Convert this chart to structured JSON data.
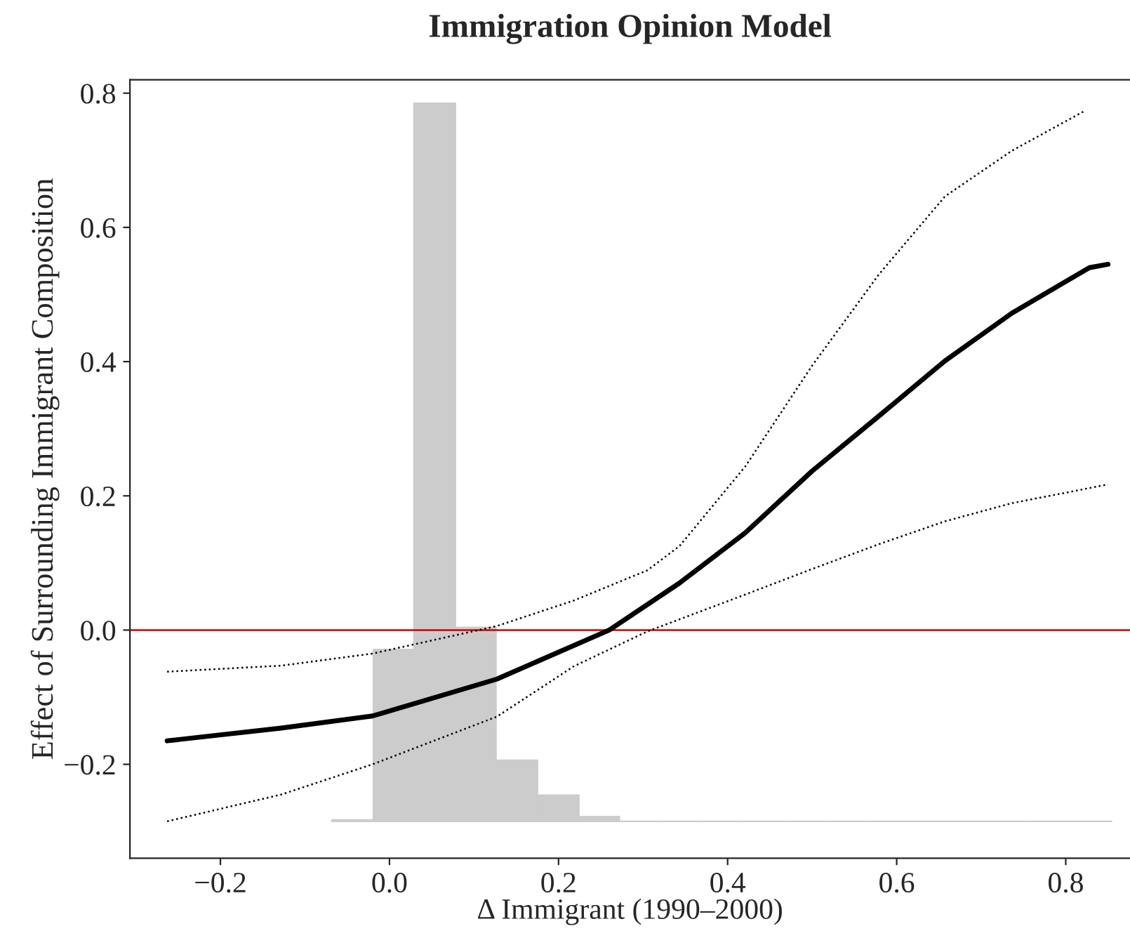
{
  "chart_data": {
    "type": "line",
    "title": "Immigration Opinion Model",
    "xlabel": "Δ Immigrant (1990–2000)",
    "ylabel": "Effect of Surrounding Immigrant Composition",
    "xlim": [
      -0.307,
      0.876
    ],
    "ylim": [
      -0.34,
      0.82
    ],
    "xticks": [
      {
        "value": -0.2,
        "label": "−0.2"
      },
      {
        "value": 0,
        "label": "0.0"
      },
      0.2,
      0.4,
      0.6,
      0.8
    ],
    "yticks": [
      {
        "value": -0.2,
        "label": "−0.2"
      },
      {
        "value": 0,
        "label": "0.0"
      },
      0.2,
      0.4,
      0.6,
      0.8
    ],
    "grid": false,
    "legend": false,
    "ref_lines": [
      {
        "axis": "y",
        "value": 0,
        "color": "#cc0000",
        "line_style": "solid"
      }
    ],
    "series": [
      {
        "type": "histogram",
        "color": "#cccccc",
        "bins": [
          -0.068,
          -0.019,
          0.029,
          0.078,
          0.126,
          0.175,
          0.224,
          0.272,
          0.321,
          0.369,
          0.418,
          0.467,
          0.515,
          0.564,
          0.612,
          0.661,
          0.71,
          0.758,
          0.807,
          0.855
        ],
        "values": [
          0.002,
          0.256,
          1.07,
          0.289,
          0.091,
          0.039,
          0.007,
          0,
          0,
          0,
          0,
          0,
          0,
          0,
          0,
          0,
          0,
          0,
          0
        ],
        "base": [
          -0.285,
          -0.285,
          -0.285,
          -0.285,
          -0.285,
          -0.285,
          -0.285,
          -0.285,
          -0.285,
          -0.285,
          -0.285,
          -0.285,
          -0.285,
          -0.285,
          -0.285,
          -0.285,
          -0.285,
          -0.285,
          -0.285
        ]
      },
      {
        "color": "#000000",
        "line_style": "dotted",
        "x": [
          -0.263,
          -0.128,
          -0.02,
          0.127,
          0.218,
          0.305,
          0.343,
          0.421,
          0.5,
          0.579,
          0.657,
          0.736,
          0.823
        ],
        "values": [
          -0.062,
          -0.053,
          -0.035,
          0.006,
          0.044,
          0.089,
          0.125,
          0.244,
          0.394,
          0.53,
          0.646,
          0.714,
          0.774
        ]
      },
      {
        "color": "#000000",
        "line_style": "solid",
        "x": [
          -0.263,
          -0.128,
          -0.02,
          0.127,
          0.26,
          0.343,
          0.421,
          0.5,
          0.579,
          0.657,
          0.736,
          0.828,
          0.85
        ],
        "values": [
          -0.165,
          -0.146,
          -0.128,
          -0.073,
          0.0,
          0.07,
          0.145,
          0.237,
          0.319,
          0.401,
          0.472,
          0.54,
          0.545
        ]
      },
      {
        "color": "#000000",
        "line_style": "dotted",
        "x": [
          -0.263,
          -0.128,
          -0.02,
          0.127,
          0.218,
          0.305,
          0.343,
          0.421,
          0.5,
          0.579,
          0.657,
          0.736,
          0.85
        ],
        "values": [
          -0.285,
          -0.245,
          -0.2,
          -0.129,
          -0.054,
          -0.002,
          0.016,
          0.053,
          0.091,
          0.128,
          0.162,
          0.189,
          0.217
        ]
      }
    ]
  }
}
